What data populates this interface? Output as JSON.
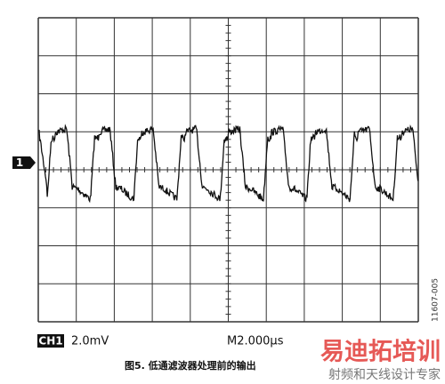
{
  "scope": {
    "channel_marker": "1",
    "channel": "CH1",
    "volts_per_div": "2.0mV",
    "time_per_div": "M2.000µs",
    "figure_id": "11607-005"
  },
  "caption": "图5. 低通滤波器处理前的输出",
  "watermark": {
    "title": "易迪拓培训",
    "subtitle": "射频和天线设计专家"
  }
}
